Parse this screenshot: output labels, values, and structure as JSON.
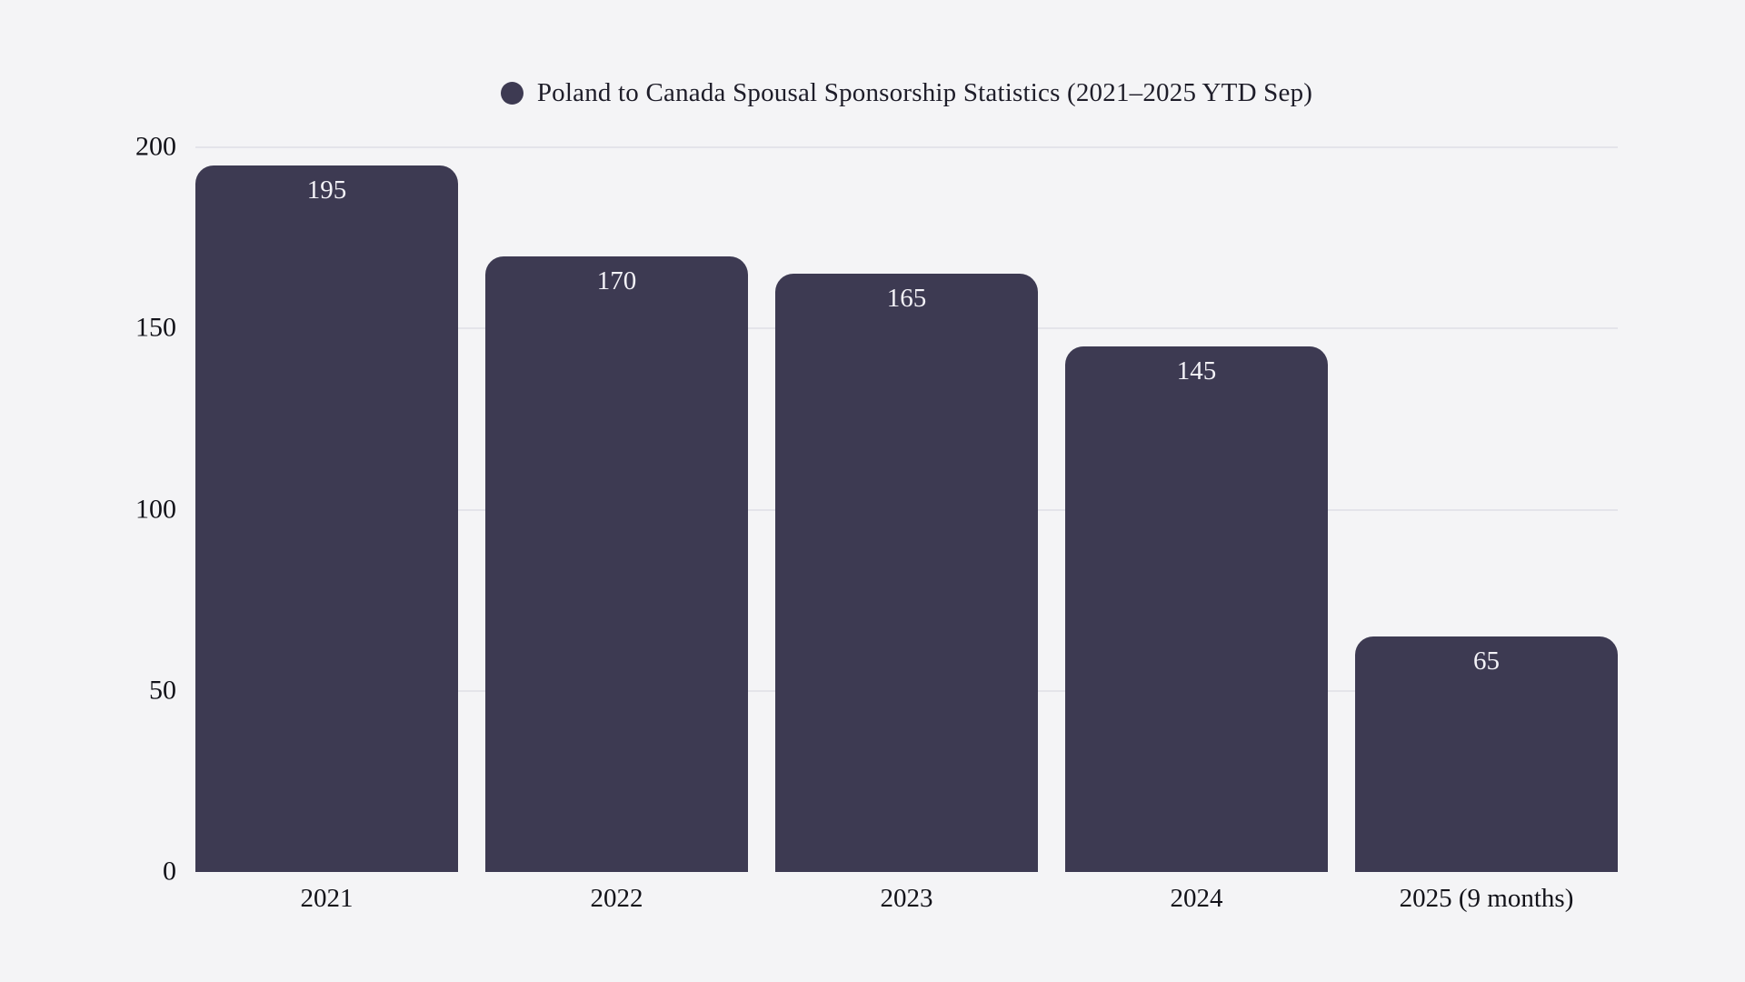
{
  "chart_data": {
    "type": "bar",
    "title": "Poland to Canada Spousal Sponsorship Statistics (2021–2025 YTD Sep)",
    "categories": [
      "2021",
      "2022",
      "2023",
      "2024",
      "2025 (9 months)"
    ],
    "values": [
      195,
      170,
      165,
      145,
      65
    ],
    "value_labels": [
      "195",
      "170",
      "165",
      "145",
      "65"
    ],
    "yticks": [
      "200",
      "150",
      "100",
      "50",
      "0"
    ],
    "ylim": [
      0,
      200
    ],
    "xlabel": "",
    "ylabel": "",
    "grid": true,
    "legend_position": "top-center",
    "value_label_position": "inside-top",
    "colors": {
      "bar": "#3d3a52",
      "legend_dot": "#3d3a52",
      "background": "#f4f4f6",
      "gridline": "#e4e4ea",
      "axis_text": "#121219",
      "title_text": "#1e1d29",
      "value_text": "#f3f2f7"
    }
  }
}
